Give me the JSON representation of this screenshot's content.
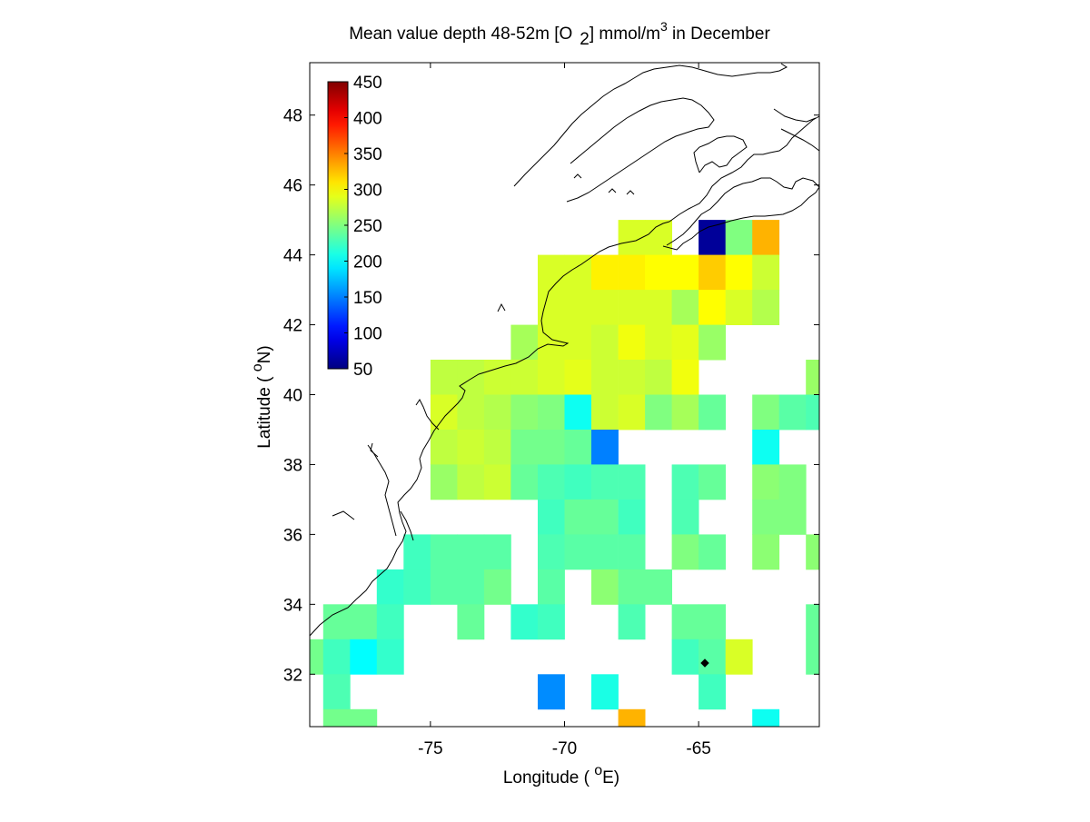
{
  "title": {
    "main": "Mean value depth 48-52m [O",
    "sub": "2",
    "unit": "] mmol/m",
    "sup": "3",
    "tail": " in December"
  },
  "axes": {
    "xlabel_text": "Longitude ( ",
    "xlabel_deg": "o",
    "xlabel_unit": "E)",
    "ylabel_text": "Latitude ( ",
    "ylabel_deg": "o",
    "ylabel_unit": "N)"
  },
  "chart_data": {
    "type": "heatmap",
    "xlim": [
      -79.5,
      -60.5
    ],
    "ylim": [
      30.5,
      49.5
    ],
    "x_ticks": [
      -75,
      -70,
      -65
    ],
    "x_tick_labels": [
      "-75",
      "-70",
      "-65"
    ],
    "y_ticks": [
      32,
      34,
      36,
      38,
      40,
      42,
      44,
      46,
      48
    ],
    "y_tick_labels": [
      "32",
      "34",
      "36",
      "38",
      "40",
      "42",
      "44",
      "46",
      "48"
    ],
    "colorbar": {
      "colormap": "jet",
      "range": [
        50,
        450
      ],
      "ticks": [
        50,
        100,
        150,
        200,
        250,
        300,
        350,
        400,
        450
      ],
      "tick_labels": [
        "50",
        "100",
        "150",
        "200",
        "250",
        "300",
        "350",
        "400",
        "450"
      ]
    },
    "cell_size_deg": 1,
    "cells": [
      [
        -67.5,
        44.5,
        285
      ],
      [
        -66.5,
        44.5,
        285
      ],
      [
        -64.5,
        44.5,
        60
      ],
      [
        -63.5,
        44.5,
        250
      ],
      [
        -62.5,
        44.5,
        330
      ],
      [
        -70.5,
        43.5,
        285
      ],
      [
        -69.5,
        43.5,
        285
      ],
      [
        -68.5,
        43.5,
        305
      ],
      [
        -67.5,
        43.5,
        305
      ],
      [
        -66.5,
        43.5,
        300
      ],
      [
        -65.5,
        43.5,
        300
      ],
      [
        -64.5,
        43.5,
        320
      ],
      [
        -63.5,
        43.5,
        300
      ],
      [
        -62.5,
        43.5,
        280
      ],
      [
        -70.5,
        42.5,
        285
      ],
      [
        -69.5,
        42.5,
        285
      ],
      [
        -68.5,
        42.5,
        285
      ],
      [
        -67.5,
        42.5,
        285
      ],
      [
        -66.5,
        42.5,
        285
      ],
      [
        -65.5,
        42.5,
        265
      ],
      [
        -64.5,
        42.5,
        300
      ],
      [
        -63.5,
        42.5,
        285
      ],
      [
        -62.5,
        42.5,
        270
      ],
      [
        -71.5,
        41.5,
        265
      ],
      [
        -70.5,
        41.5,
        285
      ],
      [
        -69.5,
        41.5,
        285
      ],
      [
        -68.5,
        41.5,
        280
      ],
      [
        -67.5,
        41.5,
        295
      ],
      [
        -66.5,
        41.5,
        285
      ],
      [
        -65.5,
        41.5,
        290
      ],
      [
        -64.5,
        41.5,
        260
      ],
      [
        -74.5,
        40.5,
        275
      ],
      [
        -73.5,
        40.5,
        275
      ],
      [
        -72.5,
        40.5,
        280
      ],
      [
        -71.5,
        40.5,
        280
      ],
      [
        -70.5,
        40.5,
        285
      ],
      [
        -69.5,
        40.5,
        290
      ],
      [
        -68.5,
        40.5,
        280
      ],
      [
        -67.5,
        40.5,
        280
      ],
      [
        -66.5,
        40.5,
        275
      ],
      [
        -65.5,
        40.5,
        295
      ],
      [
        -60.5,
        40.5,
        260
      ],
      [
        -74.5,
        39.5,
        285
      ],
      [
        -73.5,
        39.5,
        275
      ],
      [
        -72.5,
        39.5,
        270
      ],
      [
        -71.5,
        39.5,
        255
      ],
      [
        -70.5,
        39.5,
        250
      ],
      [
        -69.5,
        39.5,
        205
      ],
      [
        -68.5,
        39.5,
        280
      ],
      [
        -67.5,
        39.5,
        285
      ],
      [
        -66.5,
        39.5,
        250
      ],
      [
        -65.5,
        39.5,
        265
      ],
      [
        -64.5,
        39.5,
        240
      ],
      [
        -62.5,
        39.5,
        250
      ],
      [
        -61.5,
        39.5,
        235
      ],
      [
        -60.5,
        39.5,
        230
      ],
      [
        -74.5,
        38.5,
        275
      ],
      [
        -73.5,
        38.5,
        280
      ],
      [
        -72.5,
        38.5,
        275
      ],
      [
        -71.5,
        38.5,
        245
      ],
      [
        -70.5,
        38.5,
        245
      ],
      [
        -69.5,
        38.5,
        240
      ],
      [
        -68.5,
        38.5,
        150
      ],
      [
        -62.5,
        38.5,
        205
      ],
      [
        -74.5,
        37.5,
        260
      ],
      [
        -73.5,
        37.5,
        275
      ],
      [
        -72.5,
        37.5,
        280
      ],
      [
        -71.5,
        37.5,
        240
      ],
      [
        -70.5,
        37.5,
        230
      ],
      [
        -69.5,
        37.5,
        225
      ],
      [
        -68.5,
        37.5,
        230
      ],
      [
        -67.5,
        37.5,
        230
      ],
      [
        -65.5,
        37.5,
        230
      ],
      [
        -64.5,
        37.5,
        240
      ],
      [
        -62.5,
        37.5,
        255
      ],
      [
        -61.5,
        37.5,
        250
      ],
      [
        -70.5,
        36.5,
        225
      ],
      [
        -69.5,
        36.5,
        240
      ],
      [
        -68.5,
        36.5,
        240
      ],
      [
        -67.5,
        36.5,
        225
      ],
      [
        -65.5,
        36.5,
        230
      ],
      [
        -62.5,
        36.5,
        250
      ],
      [
        -61.5,
        36.5,
        250
      ],
      [
        -75.5,
        35.5,
        225
      ],
      [
        -74.5,
        35.5,
        235
      ],
      [
        -73.5,
        35.5,
        235
      ],
      [
        -72.5,
        35.5,
        235
      ],
      [
        -70.5,
        35.5,
        230
      ],
      [
        -69.5,
        35.5,
        235
      ],
      [
        -68.5,
        35.5,
        235
      ],
      [
        -67.5,
        35.5,
        235
      ],
      [
        -65.5,
        35.5,
        250
      ],
      [
        -64.5,
        35.5,
        240
      ],
      [
        -62.5,
        35.5,
        255
      ],
      [
        -60.5,
        35.5,
        255
      ],
      [
        -76.5,
        34.5,
        220
      ],
      [
        -75.5,
        34.5,
        225
      ],
      [
        -74.5,
        34.5,
        235
      ],
      [
        -73.5,
        34.5,
        235
      ],
      [
        -72.5,
        34.5,
        245
      ],
      [
        -70.5,
        34.5,
        235
      ],
      [
        -68.5,
        34.5,
        255
      ],
      [
        -67.5,
        34.5,
        240
      ],
      [
        -66.5,
        34.5,
        240
      ],
      [
        -78.5,
        33.5,
        240
      ],
      [
        -77.5,
        33.5,
        240
      ],
      [
        -76.5,
        33.5,
        225
      ],
      [
        -73.5,
        33.5,
        240
      ],
      [
        -71.5,
        33.5,
        220
      ],
      [
        -70.5,
        33.5,
        225
      ],
      [
        -67.5,
        33.5,
        230
      ],
      [
        -65.5,
        33.5,
        240
      ],
      [
        -64.5,
        33.5,
        240
      ],
      [
        -60.5,
        33.5,
        240
      ],
      [
        -79.5,
        32.5,
        245
      ],
      [
        -78.5,
        32.5,
        225
      ],
      [
        -77.5,
        32.5,
        200
      ],
      [
        -76.5,
        32.5,
        220
      ],
      [
        -65.5,
        32.5,
        225
      ],
      [
        -64.5,
        32.5,
        235
      ],
      [
        -63.5,
        32.5,
        285
      ],
      [
        -60.5,
        32.5,
        240
      ],
      [
        -78.5,
        31.5,
        230
      ],
      [
        -70.5,
        31.5,
        155
      ],
      [
        -68.5,
        31.5,
        210
      ],
      [
        -64.5,
        31.5,
        225
      ],
      [
        -78.5,
        30.5,
        245
      ],
      [
        -77.5,
        30.5,
        245
      ],
      [
        -67.5,
        30.5,
        330
      ],
      [
        -62.5,
        30.5,
        205
      ]
    ]
  }
}
